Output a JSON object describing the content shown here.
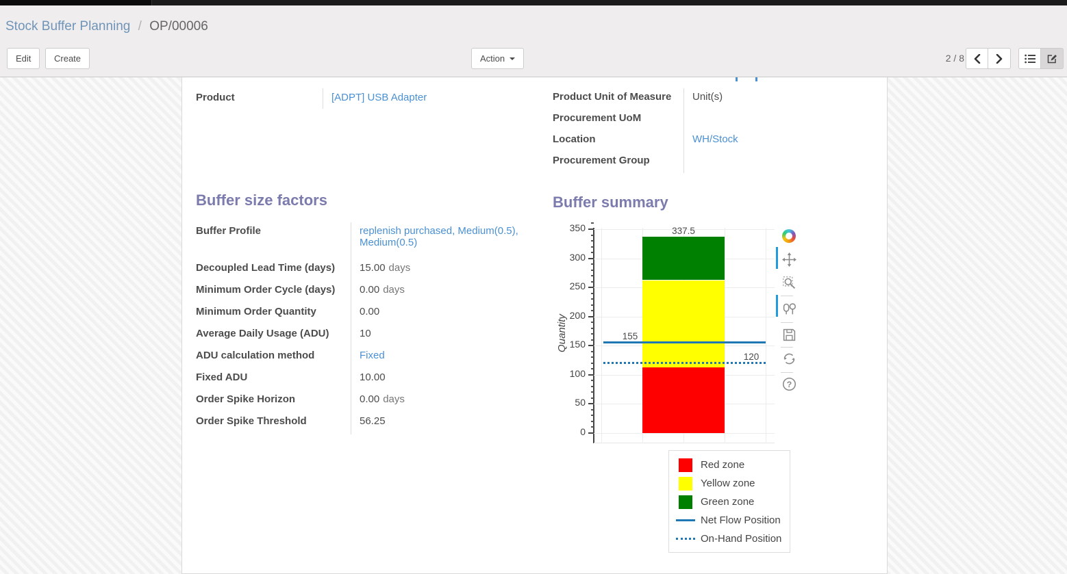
{
  "breadcrumb": {
    "parent": "Stock Buffer Planning",
    "separator": "/",
    "current": "OP/00006"
  },
  "control_panel": {
    "edit": "Edit",
    "create": "Create",
    "action": "Action",
    "pager": "2 / 8",
    "icons": [
      "chevron-left-icon",
      "chevron-right-icon",
      "list-view-icon",
      "form-view-icon",
      "caret-down-icon"
    ]
  },
  "form": {
    "product": {
      "label": "Product",
      "value": "[ADPT] USB Adapter"
    },
    "right_fields": [
      {
        "label": "Product Unit of Measure",
        "value": "Unit(s)"
      },
      {
        "label": "Procurement UoM",
        "value": ""
      },
      {
        "label": "Location",
        "value": "WH/Stock"
      },
      {
        "label": "Procurement Group",
        "value": ""
      }
    ],
    "factors": {
      "title": "Buffer size factors",
      "rows": [
        {
          "label": "Buffer Profile",
          "value": "replenish purchased, Medium(0.5), Medium(0.5)",
          "unit": ""
        },
        {
          "label": "Decoupled Lead Time (days)",
          "value": "15.00",
          "unit": "days"
        },
        {
          "label": "Minimum Order Cycle (days)",
          "value": "0.00",
          "unit": "days"
        },
        {
          "label": "Minimum Order Quantity",
          "value": "0.00",
          "unit": ""
        },
        {
          "label": "Average Daily Usage (ADU)",
          "value": "10",
          "unit": ""
        },
        {
          "label": "ADU calculation method",
          "value": "Fixed",
          "unit": ""
        },
        {
          "label": "Fixed ADU",
          "value": "10.00",
          "unit": ""
        },
        {
          "label": "Order Spike Horizon",
          "value": "0.00",
          "unit": "days"
        },
        {
          "label": "Order Spike Threshold",
          "value": "56.25",
          "unit": ""
        }
      ]
    },
    "summary_title": "Buffer summary"
  },
  "chart_data": {
    "type": "bar",
    "stacked": true,
    "title": "",
    "xlabel": "",
    "ylabel": "Quantity",
    "ylim": [
      0,
      350
    ],
    "yticks": [
      0,
      50,
      100,
      150,
      200,
      250,
      300,
      350
    ],
    "grid": true,
    "categories": [
      ""
    ],
    "series": [
      {
        "name": "Red zone",
        "color": "#ff0000",
        "values": [
          112.5
        ]
      },
      {
        "name": "Yellow zone",
        "color": "#ffff00",
        "values": [
          150
        ]
      },
      {
        "name": "Green zone",
        "color": "#008000",
        "values": [
          75
        ]
      }
    ],
    "boundary_labels": [
      "112.5",
      "262.5",
      "337.5"
    ],
    "lines": [
      {
        "name": "Net Flow Position",
        "value": 155,
        "label": "155",
        "style": "solid",
        "color": "#1f77b4"
      },
      {
        "name": "On-Hand Position",
        "value": 120,
        "label": "120",
        "style": "dotted",
        "color": "#1f77b4"
      }
    ],
    "legend": [
      {
        "label": "Red zone",
        "swatch": "square",
        "color": "#ff0000"
      },
      {
        "label": "Yellow zone",
        "swatch": "square",
        "color": "#ffff00"
      },
      {
        "label": "Green zone",
        "swatch": "square",
        "color": "#008000"
      },
      {
        "label": "Net Flow Position",
        "swatch": "line-solid",
        "color": "#1f77b4"
      },
      {
        "label": "On-Hand Position",
        "swatch": "line-dotted",
        "color": "#1f77b4"
      }
    ],
    "legend_position": "bottom-right"
  },
  "modebar": {
    "icons": [
      "plotly-logo",
      "pan-icon",
      "zoom-icon",
      "compare-hover-icon",
      "save-icon",
      "reset-icon",
      "help-icon"
    ]
  }
}
